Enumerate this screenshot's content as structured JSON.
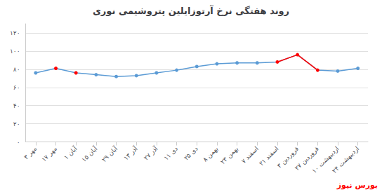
{
  "chart_data": {
    "type": "line",
    "title": "روند هفتگی نرخ آرتوزایلین پتروشیمی نوری",
    "categories": [
      "۳ مهر",
      "۱۷ مهر",
      "۱ آبان",
      "۱۵ آبان",
      "۲۹ آبان",
      "۱۳ آذر",
      "۲۷ آذر",
      "۱۱ دی",
      "۲۵ دی",
      "۸ بهمن",
      "۲۳ بهمن",
      "۷ اسفند",
      "۲۱ اسفند",
      "۳ فروردین",
      "۲۷ فروردین",
      "۱۰ اردیبهشت",
      "۲۴ اردیبهشت"
    ],
    "series": [
      {
        "color": "#5B9BD5",
        "marker": "o",
        "colors": [
          "#5B9BD5",
          "#FF0000",
          "#FF0000",
          "#5B9BD5",
          "#5B9BD5",
          "#5B9BD5",
          "#5B9BD5",
          "#5B9BD5",
          "#5B9BD5",
          "#5B9BD5",
          "#5B9BD5",
          "#5B9BD5",
          "#FF0000",
          "#FF0000",
          "#FF0000",
          "#5B9BD5",
          "#5B9BD5"
        ],
        "values": [
          76,
          81,
          76,
          74,
          72,
          73,
          76,
          79,
          83,
          86,
          87,
          87,
          88,
          96,
          79,
          78,
          81
        ]
      },
      {
        "color": "#FF0000",
        "marker": "none",
        "values": [
          null,
          null,
          null,
          null,
          null,
          null,
          null,
          null,
          null,
          null,
          null,
          null,
          88,
          96,
          79,
          null,
          null
        ]
      }
    ],
    "ylim": [
      0,
      130
    ],
    "yticks": [
      {
        "value": 0,
        "label": "۰"
      },
      {
        "value": 20,
        "label": "۲۰"
      },
      {
        "value": 40,
        "label": "۴۰"
      },
      {
        "value": 60,
        "label": "۶۰"
      },
      {
        "value": 80,
        "label": "۸۰"
      },
      {
        "value": 100,
        "label": "۱۰۰"
      },
      {
        "value": 120,
        "label": "۱۲۰"
      }
    ],
    "grid": true,
    "annotations": [
      {
        "text": "بورس نیوز",
        "color": "red"
      }
    ]
  }
}
